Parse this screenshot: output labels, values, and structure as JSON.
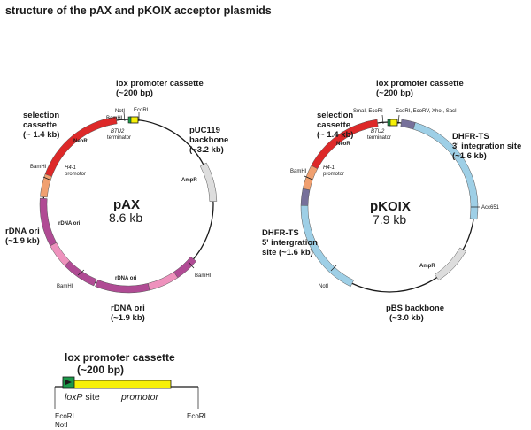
{
  "title": "structure of the pAX and pKOIX acceptor plasmids",
  "colors": {
    "neo": "#dd2929",
    "promotor": "#f0a070",
    "rdna": "#b04b94",
    "rdna_light": "#ee92bd",
    "amp": "#dddddd",
    "dhfr": "#9ecfe6",
    "gray_blue": "#76709a",
    "lox_yellow": "#f6f008",
    "lox_green": "#1c9a4a",
    "backbone": "#1a1a1a"
  },
  "pax": {
    "name": "pAX",
    "size": "8.6 kb",
    "lox_label": [
      "lox promoter cassette",
      "(~200 bp)"
    ],
    "selection_label": [
      "selection",
      "cassette",
      "(~ 1.4 kb)"
    ],
    "backbone_label": [
      "pUC119",
      "backbone",
      "(~3.2 kb)"
    ],
    "rdna_left_label": [
      "rDNA ori",
      "(~1.9 kb)"
    ],
    "rdna_bottom_label": [
      "rDNA ori",
      "(~1.9 kb)"
    ],
    "neo": "NeoR",
    "promotor": [
      "H4-1",
      "promotor"
    ],
    "terminator": [
      "BTU2",
      "terminator"
    ],
    "amp": "AmpR",
    "rdna_inner_1": "rDNA ori",
    "rdna_inner_2": "rDNA ori",
    "sites": {
      "notI": "NotI",
      "bamHI_top": "BamHI",
      "ecoRI": "EcoRI",
      "bamHI_left": "BamHI",
      "bamHI_bottom_left": "BamHI",
      "bamHI_right": "BamHI"
    }
  },
  "pkoix": {
    "name": "pKOIX",
    "size": "7.9 kb",
    "lox_label": [
      "lox promoter cassette",
      "(~200 bp)"
    ],
    "selection_label": [
      "selection",
      "cassette",
      "(~ 1.4 kb)"
    ],
    "dhfr3_label": [
      "DHFR-TS",
      "3' integration site",
      "(~1.6 kb)"
    ],
    "dhfr5_label": [
      "DHFR-TS",
      "5' intergration",
      "site (~1.6 kb)"
    ],
    "backbone_label": [
      "pBS backbone",
      "(~3.0 kb)"
    ],
    "neo": "NeoR",
    "promotor": [
      "H4-1",
      "promotor"
    ],
    "terminator": [
      "BTU2",
      "terminator"
    ],
    "amp": "AmpR",
    "sites": {
      "smaI_ecoRI": "SmaI, EcoRI",
      "ecoRI_multi": "EcoRI, EcoRV, XhoI, SacI",
      "bamHI": "BamHI",
      "acc651": "Acc651",
      "notI": "NotI"
    }
  },
  "lox": {
    "title": [
      "lox promoter cassette",
      "(~200 bp)"
    ],
    "loxp_italic": "loxP",
    "loxp_suffix": " site",
    "promotor": "promotor",
    "left_sites": [
      "EcoRI",
      "NotI"
    ],
    "right_site": "EcoRI"
  }
}
